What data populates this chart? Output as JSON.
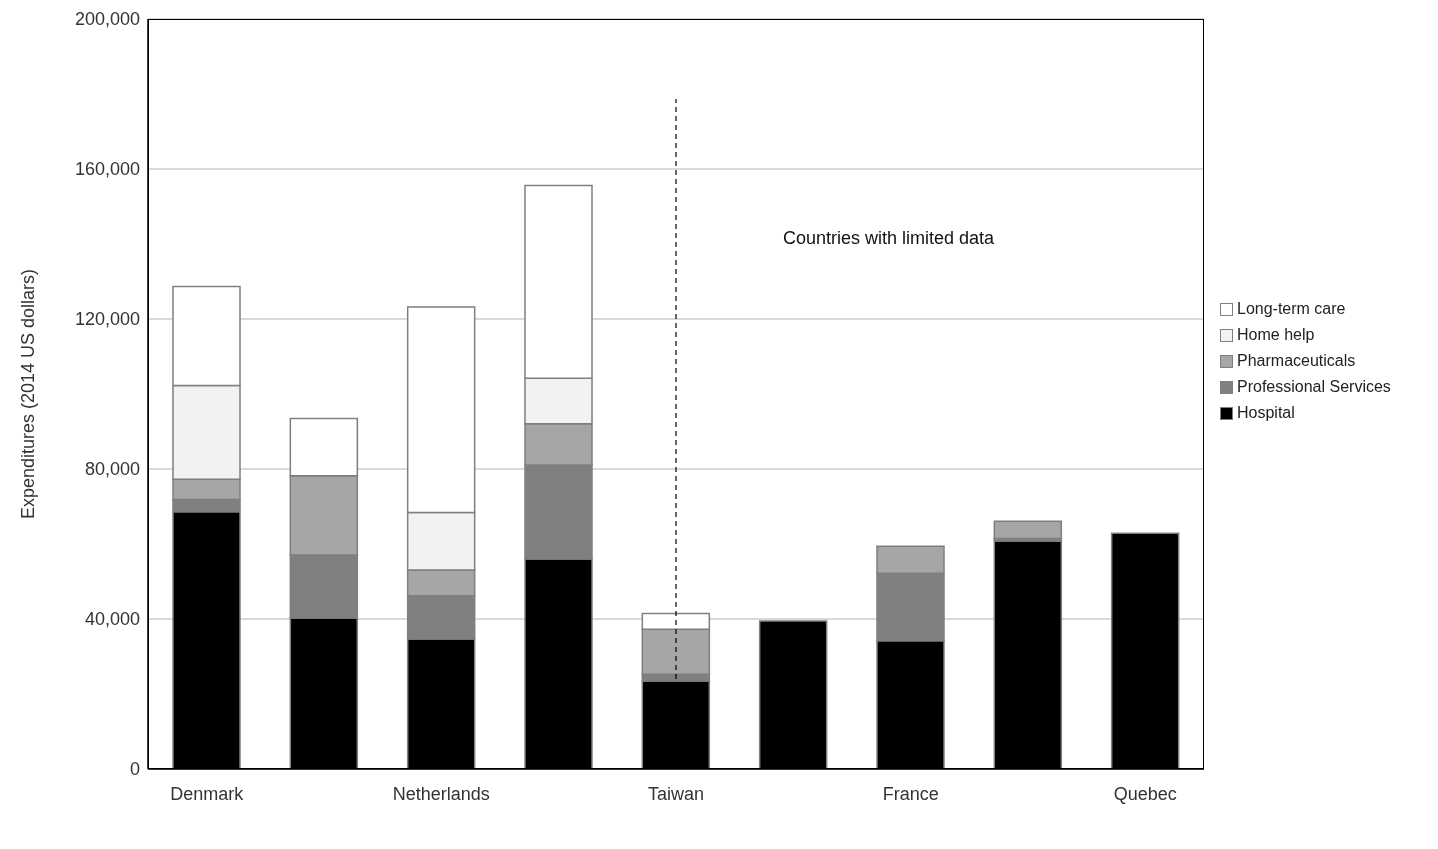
{
  "chart_data": {
    "type": "bar",
    "stacked": true,
    "ylabel": "Expenditures (2014 US dollars)",
    "categories": [
      "Denmark",
      null,
      "Netherlands",
      null,
      "Taiwan",
      null,
      "France",
      null,
      "Quebec"
    ],
    "series": [
      {
        "name": "Hospital",
        "color": "#000000",
        "values": [
          68600,
          40300,
          34700,
          56000,
          23500,
          39500,
          34200,
          60800,
          62900
        ]
      },
      {
        "name": "Professional Services",
        "color": "#808080",
        "values": [
          3300,
          16800,
          11500,
          25100,
          1800,
          0,
          18000,
          700,
          0
        ]
      },
      {
        "name": "Pharmaceuticals",
        "color": "#a6a6a6",
        "values": [
          5400,
          21100,
          6900,
          11000,
          12000,
          0,
          7200,
          4600,
          0
        ]
      },
      {
        "name": "Home help",
        "color": "#f2f2f2",
        "values": [
          25000,
          0,
          15300,
          12100,
          0,
          0,
          0,
          0,
          0
        ]
      },
      {
        "name": "Long-term care",
        "color": "#ffffff",
        "values": [
          26400,
          15300,
          54800,
          51400,
          4200,
          0,
          0,
          0,
          0
        ]
      }
    ],
    "ylim": [
      0,
      200000
    ],
    "yticks": [
      0,
      {
        "value": 40000,
        "label": "40,000"
      },
      {
        "value": 80000,
        "label": "80,000"
      },
      {
        "value": 120000,
        "label": "120,000"
      },
      {
        "value": 160000,
        "label": "160,000"
      },
      {
        "value": 200000,
        "label": "200,000"
      }
    ],
    "grid": "y",
    "legend": "right",
    "ref_lines": [
      {
        "axis": "x",
        "value": "Taiwan",
        "line_style": "dashed",
        "color": "#000000"
      }
    ],
    "annotations": [
      "Countries with limited data"
    ]
  }
}
